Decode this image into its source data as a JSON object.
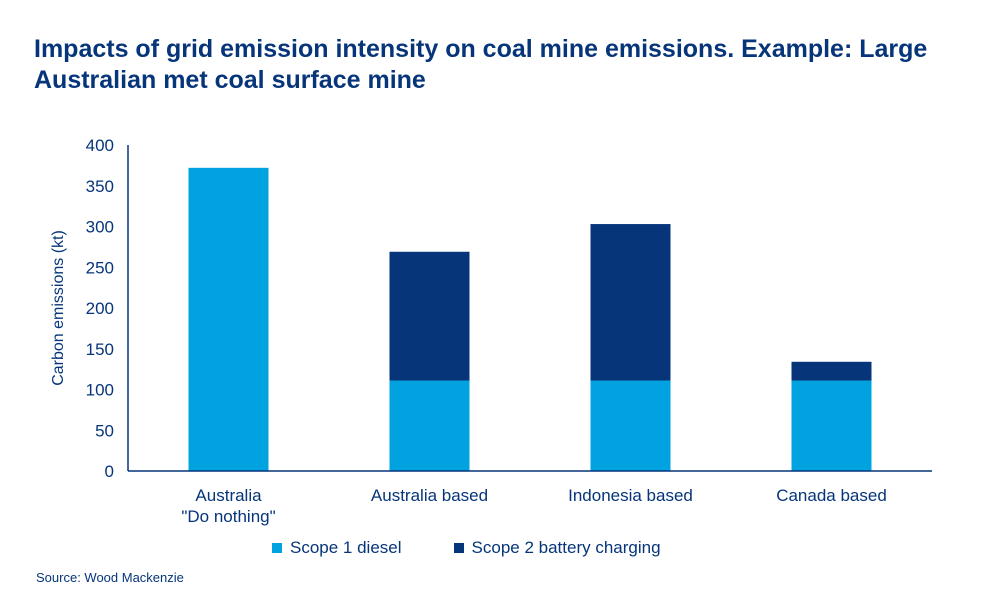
{
  "chart_data": {
    "type": "bar",
    "stacked": true,
    "title": "Impacts of grid emission intensity on coal mine emissions. Example: Large Australian met coal surface mine",
    "categories": [
      [
        "Australia",
        "\"Do nothing\""
      ],
      [
        "Australia based"
      ],
      [
        "Indonesia based"
      ],
      [
        "Canada based"
      ]
    ],
    "series": [
      {
        "name": "Scope 1 diesel",
        "color": "#00a3e0",
        "values": [
          372,
          111,
          111,
          111
        ]
      },
      {
        "name": "Scope 2 battery charging",
        "color": "#063579",
        "values": [
          0,
          158,
          192,
          23
        ]
      }
    ],
    "xlabel": "",
    "ylabel": "Carbon emissions (kt)",
    "ylim": [
      0,
      400
    ],
    "yticks": [
      0,
      50,
      100,
      150,
      200,
      250,
      300,
      350,
      400
    ],
    "grid": false,
    "legend_position": "bottom"
  },
  "source": "Source: Wood Mackenzie"
}
